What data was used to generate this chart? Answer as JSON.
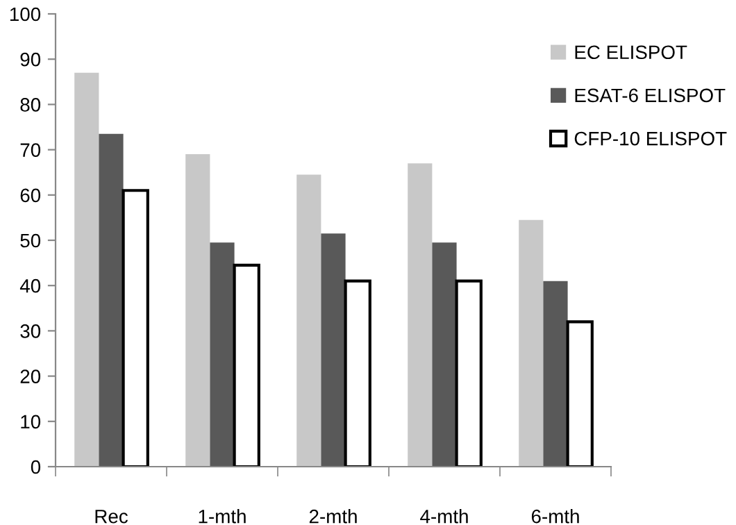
{
  "chart_data": {
    "type": "bar",
    "categories": [
      "Rec",
      "1-mth",
      "2-mth",
      "4-mth",
      "6-mth"
    ],
    "series": [
      {
        "name": "EC ELISPOT",
        "color": "#c8c8c8",
        "values": [
          87,
          69,
          64.5,
          67,
          54.5
        ]
      },
      {
        "name": "ESAT-6 ELISPOT",
        "color": "#595959",
        "values": [
          73.5,
          49.5,
          51.5,
          49.5,
          41
        ]
      },
      {
        "name": "CFP-10 ELISPOT",
        "color": "#ffffff",
        "values": [
          61,
          44.5,
          41,
          41,
          32
        ]
      }
    ],
    "ylim": [
      0,
      100
    ],
    "yticks": [
      0,
      10,
      20,
      30,
      40,
      50,
      60,
      70,
      80,
      90,
      100
    ],
    "grid": false,
    "legend": "top right"
  }
}
